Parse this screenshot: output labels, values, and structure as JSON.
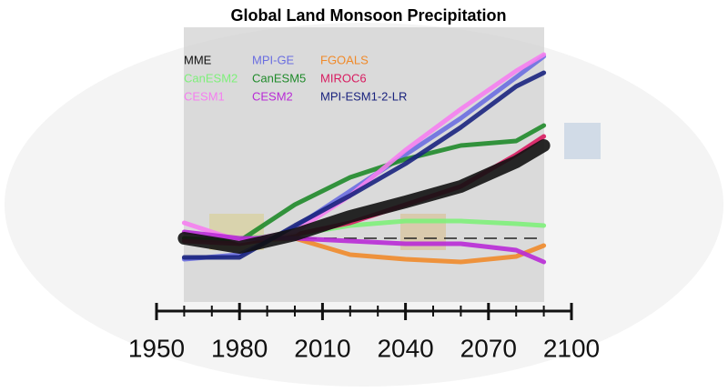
{
  "chart_data": {
    "type": "line",
    "title": "Global Land Monsoon Precipitation",
    "x": [
      1960,
      1980,
      2000,
      2020,
      2040,
      2060,
      2080,
      2090
    ],
    "xlim": [
      1950,
      2100
    ],
    "xticks": [
      1950,
      1980,
      2010,
      2040,
      2070,
      2100
    ],
    "xminorticks": [
      1960,
      1970,
      1990,
      2000,
      2020,
      2030,
      2050,
      2060,
      2080,
      2090
    ],
    "ylim": [
      -3.5,
      11.5
    ],
    "hline": 0,
    "series": [
      {
        "name": "MME",
        "color": "#111111",
        "values": [
          0,
          -0.5,
          0.2,
          1.2,
          2.0,
          2.85,
          4.2,
          5.1
        ]
      },
      {
        "name": "MPI-GE",
        "color": "#6a6ee0",
        "values": [
          -1.15,
          -0.9,
          0.6,
          2.6,
          4.6,
          6.6,
          8.85,
          10
        ]
      },
      {
        "name": "FGOALS",
        "color": "#f08a2a",
        "values": [
          0,
          -0.15,
          0,
          -0.9,
          -1.15,
          -1.3,
          -1.0,
          -0.4
        ]
      },
      {
        "name": "CanESM2",
        "color": "#7ef07a",
        "values": [
          -0.15,
          0,
          0.2,
          0.7,
          0.95,
          0.95,
          0.8,
          0.7
        ]
      },
      {
        "name": "CanESM5",
        "color": "#1f8a2a",
        "values": [
          0,
          -0.15,
          1.85,
          3.35,
          4.35,
          5.1,
          5.35,
          6.2
        ]
      },
      {
        "name": "MIROC6",
        "color": "#d81b60",
        "values": [
          -0.15,
          -0.3,
          0.2,
          0.85,
          1.85,
          2.85,
          4.6,
          5.6
        ]
      },
      {
        "name": "CESM1",
        "color": "#f57ef0",
        "values": [
          0.85,
          -0.15,
          0.35,
          2.35,
          4.85,
          7.1,
          9.2,
          10.1
        ]
      },
      {
        "name": "CESM2",
        "color": "#b82ad6",
        "values": [
          0.35,
          0,
          0,
          -0.15,
          -0.3,
          -0.3,
          -0.65,
          -1.3
        ]
      },
      {
        "name": "MPI-ESM1-2-LR",
        "color": "#1a237e",
        "values": [
          -1.05,
          -1.05,
          0.7,
          2.35,
          4.1,
          6.1,
          8.35,
          9.1
        ]
      }
    ]
  }
}
